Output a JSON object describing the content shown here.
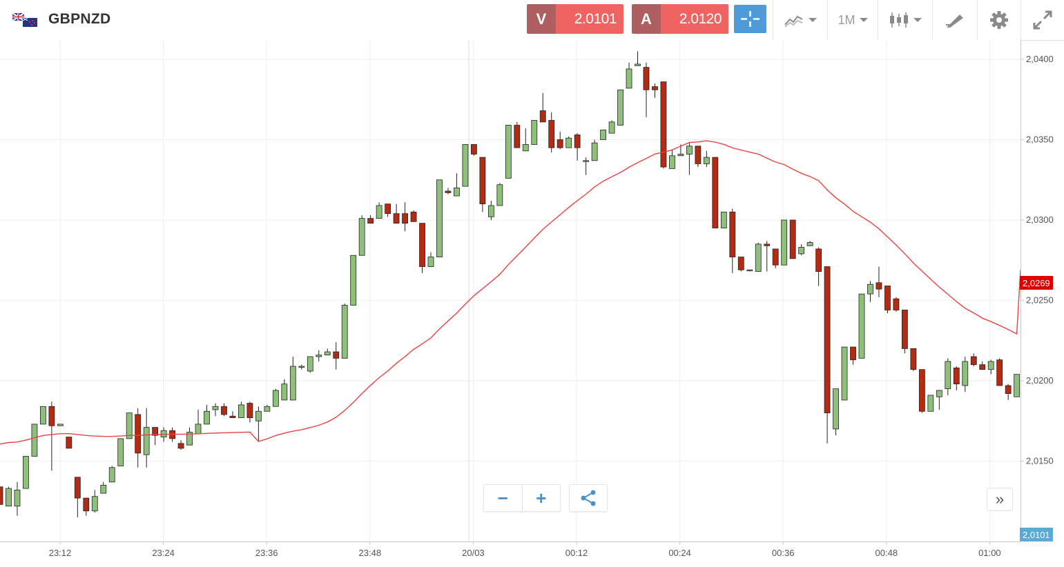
{
  "header": {
    "symbol": "GBPNZD",
    "sell": {
      "label": "V",
      "price": "2.0101"
    },
    "buy": {
      "label": "A",
      "price": "2.0120"
    },
    "timeframe": "1M",
    "icons": [
      "flag-icon",
      "crosshair-icon",
      "chart-type-icon",
      "candles-icon",
      "drawing-icon",
      "gear-icon",
      "fullscreen-icon"
    ]
  },
  "controls": {
    "zoom_out": "−",
    "zoom_in": "+",
    "scroll_right": "»"
  },
  "colors": {
    "up": "#8ec07c",
    "down": "#b42b14",
    "ma": "#e8433f",
    "current_tag": "#dd0000",
    "bid_tag": "#5aa9d6"
  },
  "chart_data": {
    "type": "candlestick",
    "y_ticks": [
      "2,0400",
      "2,0350",
      "2,0300",
      "2,0250",
      "2,0200",
      "2,0150"
    ],
    "y_tick_values": [
      2.04,
      2.035,
      2.03,
      2.025,
      2.02,
      2.015
    ],
    "x_ticks": [
      "23:12",
      "23:24",
      "23:36",
      "23:48",
      "20/03",
      "00:12",
      "00:24",
      "00:36",
      "00:48",
      "01:00"
    ],
    "ylim": [
      2.01,
      2.0412
    ],
    "ma_current": "2,0269",
    "bid_current": "2,0101",
    "candles": [
      [
        2.0134,
        2.0123,
        2.0134,
        2.0123
      ],
      [
        2.0122,
        2.0133,
        2.0134,
        2.0122
      ],
      [
        2.0122,
        2.0132,
        2.0137,
        2.0116
      ],
      [
        2.0133,
        2.0153,
        2.0153,
        2.0133
      ],
      [
        2.0153,
        2.0173,
        2.0173,
        2.0153
      ],
      [
        2.0173,
        2.0184,
        2.0184,
        2.0173
      ],
      [
        2.0184,
        2.0172,
        2.0187,
        2.0144
      ],
      [
        2.0172,
        2.0173,
        2.0173,
        2.0172
      ],
      [
        2.0165,
        2.0158,
        2.0165,
        2.0158
      ],
      [
        2.014,
        2.0127,
        2.014,
        2.0115
      ],
      [
        2.0127,
        2.0119,
        2.0127,
        2.0116
      ],
      [
        2.0119,
        2.0128,
        2.0132,
        2.0118
      ],
      [
        2.013,
        2.0135,
        2.0137,
        2.013
      ],
      [
        2.0137,
        2.0146,
        2.0147,
        2.0137
      ],
      [
        2.0147,
        2.0164,
        2.0164,
        2.0147
      ],
      [
        2.0164,
        2.018,
        2.018,
        2.0164
      ],
      [
        2.0179,
        2.0155,
        2.0183,
        2.0146
      ],
      [
        2.0154,
        2.0171,
        2.0183,
        2.0146
      ],
      [
        2.0171,
        2.0166,
        2.0171,
        2.016
      ],
      [
        2.0165,
        2.0169,
        2.0171,
        2.0162
      ],
      [
        2.0169,
        2.0164,
        2.0171,
        2.0162
      ],
      [
        2.0161,
        2.0158,
        2.0163,
        2.0157
      ],
      [
        2.016,
        2.0168,
        2.0171,
        2.016
      ],
      [
        2.0167,
        2.0173,
        2.0182,
        2.0167
      ],
      [
        2.0173,
        2.0181,
        2.0185,
        2.0173
      ],
      [
        2.0182,
        2.0184,
        2.0186,
        2.0178
      ],
      [
        2.0184,
        2.0179,
        2.0186,
        2.0178
      ],
      [
        2.0178,
        2.0177,
        2.0181,
        2.0177
      ],
      [
        2.0177,
        2.0185,
        2.0187,
        2.0177
      ],
      [
        2.0186,
        2.0177,
        2.0187,
        2.0174
      ],
      [
        2.0175,
        2.0181,
        2.0184,
        2.0162
      ],
      [
        2.0181,
        2.0184,
        2.0185,
        2.0181
      ],
      [
        2.0184,
        2.0194,
        2.0195,
        2.0184
      ],
      [
        2.0188,
        2.0198,
        2.0201,
        2.0188
      ],
      [
        2.0188,
        2.0209,
        2.0215,
        2.0188
      ],
      [
        2.0209,
        2.0209,
        2.021,
        2.0207
      ],
      [
        2.0206,
        2.0215,
        2.0215,
        2.0205
      ],
      [
        2.0215,
        2.0216,
        2.0219,
        2.0212
      ],
      [
        2.0216,
        2.0218,
        2.022,
        2.0217
      ],
      [
        2.0218,
        2.0214,
        2.0224,
        2.0207
      ],
      [
        2.0214,
        2.0247,
        2.0248,
        2.0214
      ],
      [
        2.0247,
        2.0278,
        2.0278,
        2.0247
      ],
      [
        2.0278,
        2.0301,
        2.0303,
        2.0278
      ],
      [
        2.0301,
        2.0298,
        2.0303,
        2.0298
      ],
      [
        2.0301,
        2.0309,
        2.0311,
        2.0301
      ],
      [
        2.031,
        2.0304,
        2.031,
        2.0302
      ],
      [
        2.0304,
        2.0298,
        2.031,
        2.0298
      ],
      [
        2.0304,
        2.0298,
        2.0311,
        2.0293
      ],
      [
        2.0305,
        2.0299,
        2.0306,
        2.0299
      ],
      [
        2.0298,
        2.0271,
        2.0298,
        2.0267
      ],
      [
        2.0271,
        2.0277,
        2.028,
        2.0271
      ],
      [
        2.0277,
        2.0325,
        2.0325,
        2.0277
      ],
      [
        2.0318,
        2.0317,
        2.032,
        2.0316
      ],
      [
        2.0315,
        2.032,
        2.0329,
        2.0315
      ],
      [
        2.0321,
        2.0347,
        2.0347,
        2.0321
      ],
      [
        2.0347,
        2.0341,
        2.0347,
        2.034
      ],
      [
        2.0339,
        2.031,
        2.0339,
        2.0305
      ],
      [
        2.0302,
        2.0309,
        2.0312,
        2.03
      ],
      [
        2.0309,
        2.0322,
        2.0323,
        2.0309
      ],
      [
        2.0326,
        2.0359,
        2.0359,
        2.0326
      ],
      [
        2.0359,
        2.0345,
        2.0361,
        2.0345
      ],
      [
        2.0343,
        2.0347,
        2.0357,
        2.0343
      ],
      [
        2.0347,
        2.0362,
        2.0362,
        2.0347
      ],
      [
        2.0368,
        2.0361,
        2.0379,
        2.0361
      ],
      [
        2.0362,
        2.0345,
        2.0367,
        2.0342
      ],
      [
        2.035,
        2.0345,
        2.0355,
        2.0344
      ],
      [
        2.0345,
        2.0351,
        2.0352,
        2.0345
      ],
      [
        2.0353,
        2.0345,
        2.0354,
        2.0337
      ],
      [
        2.0337,
        2.0337,
        2.0339,
        2.0328
      ],
      [
        2.0337,
        2.0348,
        2.035,
        2.0337
      ],
      [
        2.035,
        2.0356,
        2.0356,
        2.035
      ],
      [
        2.0354,
        2.0361,
        2.0362,
        2.0354
      ],
      [
        2.0359,
        2.0381,
        2.0381,
        2.0359
      ],
      [
        2.0382,
        2.0394,
        2.0398,
        2.0382
      ],
      [
        2.0396,
        2.0397,
        2.0405,
        2.0396
      ],
      [
        2.0395,
        2.0381,
        2.0398,
        2.0364
      ],
      [
        2.0383,
        2.0381,
        2.0385,
        2.0376
      ],
      [
        2.0386,
        2.0333,
        2.0386,
        2.0332
      ],
      [
        2.0332,
        2.034,
        2.0344,
        2.0332
      ],
      [
        2.034,
        2.0341,
        2.0347,
        2.034
      ],
      [
        2.0341,
        2.0346,
        2.0348,
        2.0328
      ],
      [
        2.0346,
        2.0335,
        2.0346,
        2.0333
      ],
      [
        2.0335,
        2.0339,
        2.0343,
        2.0333
      ],
      [
        2.0339,
        2.0295,
        2.0339,
        2.0295
      ],
      [
        2.0295,
        2.0305,
        2.0305,
        2.0295
      ],
      [
        2.0305,
        2.0277,
        2.0307,
        2.0267
      ],
      [
        2.0277,
        2.0269,
        2.0277,
        2.0268
      ],
      [
        2.0269,
        2.0269,
        2.0269,
        2.0268
      ],
      [
        2.0268,
        2.0285,
        2.0286,
        2.0268
      ],
      [
        2.0285,
        2.0284,
        2.0287,
        2.0268
      ],
      [
        2.0282,
        2.0272,
        2.0282,
        2.027
      ],
      [
        2.0272,
        2.03,
        2.03,
        2.0272
      ],
      [
        2.03,
        2.0276,
        2.03,
        2.0276
      ],
      [
        2.0279,
        2.0283,
        2.0285,
        2.0278
      ],
      [
        2.0284,
        2.0286,
        2.0287,
        2.0284
      ],
      [
        2.0282,
        2.0268,
        2.0283,
        2.0259
      ],
      [
        2.0271,
        2.018,
        2.0271,
        2.0161
      ],
      [
        2.017,
        2.0195,
        2.0195,
        2.0166
      ],
      [
        2.0188,
        2.0221,
        2.0221,
        2.0188
      ],
      [
        2.0221,
        2.0213,
        2.0221,
        2.021
      ],
      [
        2.0214,
        2.0254,
        2.0254,
        2.0214
      ],
      [
        2.0254,
        2.026,
        2.0262,
        2.0249
      ],
      [
        2.0261,
        2.0257,
        2.0271,
        2.0252
      ],
      [
        2.0259,
        2.0244,
        2.0259,
        2.0242
      ],
      [
        2.0251,
        2.0244,
        2.0252,
        2.0243
      ],
      [
        2.0244,
        2.022,
        2.0244,
        2.0217
      ],
      [
        2.022,
        2.0207,
        2.022,
        2.0206
      ],
      [
        2.0207,
        2.0181,
        2.0207,
        2.018
      ],
      [
        2.0181,
        2.0191,
        2.0191,
        2.0181
      ],
      [
        2.019,
        2.0194,
        2.0194,
        2.0182
      ],
      [
        2.0195,
        2.0212,
        2.0214,
        2.0191
      ],
      [
        2.0208,
        2.0198,
        2.0209,
        2.0194
      ],
      [
        2.0197,
        2.0212,
        2.0215,
        2.0193
      ],
      [
        2.0215,
        2.021,
        2.0217,
        2.0209
      ],
      [
        2.021,
        2.0207,
        2.0212,
        2.0208
      ],
      [
        2.0207,
        2.0212,
        2.0213,
        2.0204
      ],
      [
        2.0213,
        2.0197,
        2.0214,
        2.0197
      ],
      [
        2.0197,
        2.0192,
        2.0198,
        2.0188
      ],
      [
        2.019,
        2.0204,
        2.0204,
        2.019
      ]
    ]
  }
}
